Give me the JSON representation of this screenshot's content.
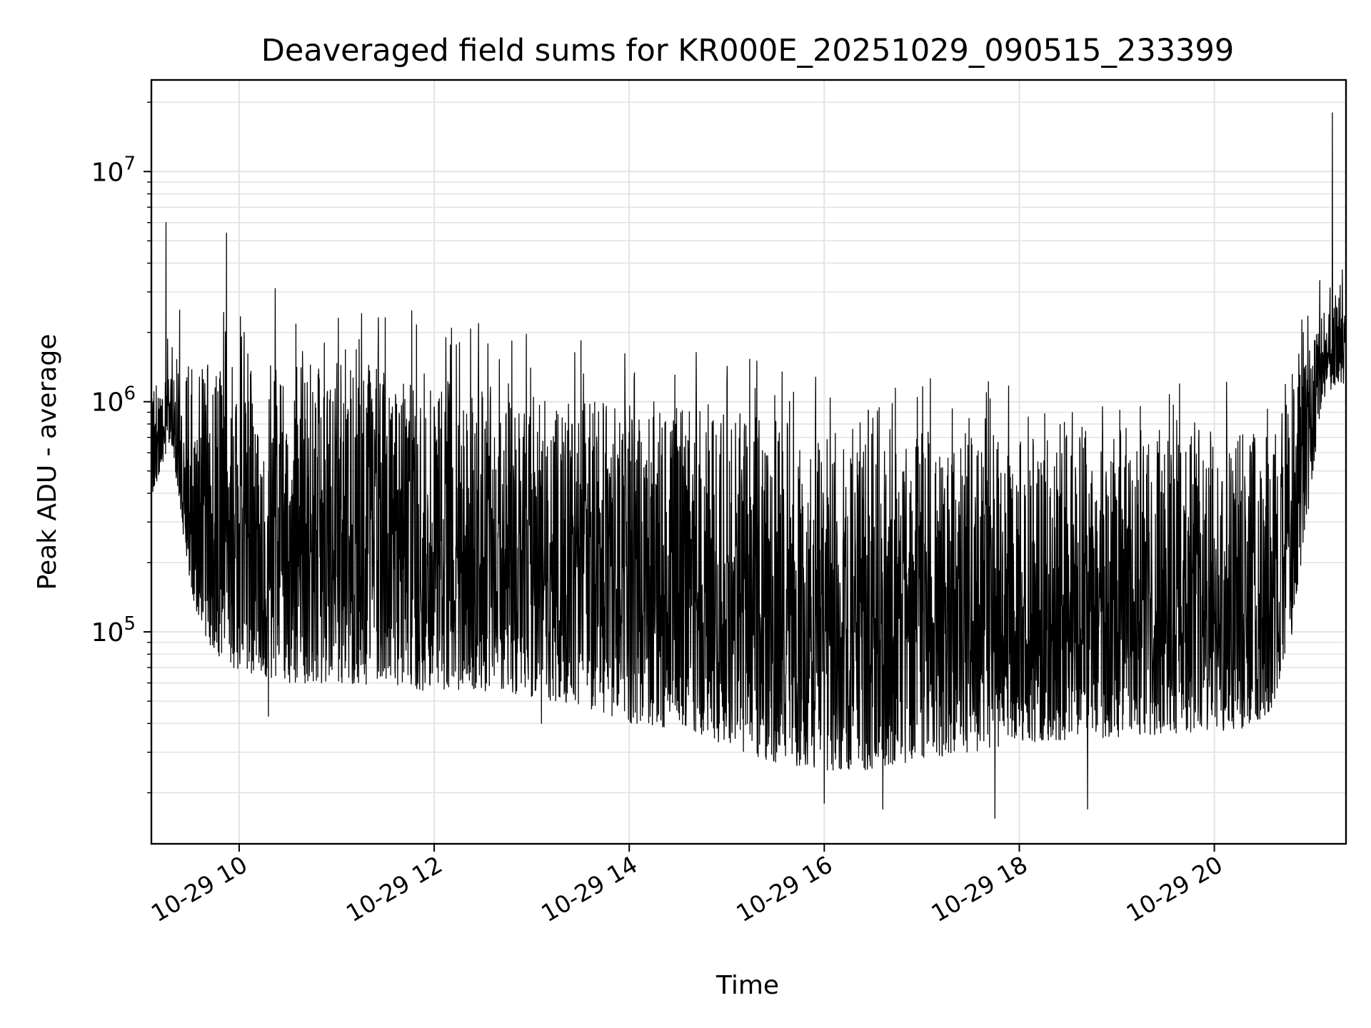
{
  "chart_data": {
    "type": "line",
    "title": "Deaveraged field sums for KR000E_20251029_090515_233399",
    "xlabel": "Time",
    "ylabel": "Peak ADU - average",
    "yscale": "log",
    "xlim_hours": [
      9.1,
      21.35
    ],
    "ylim": [
      12000,
      25000000
    ],
    "x_ticks": [
      {
        "label": "10-29 10",
        "hour": 10
      },
      {
        "label": "10-29 12",
        "hour": 12
      },
      {
        "label": "10-29 14",
        "hour": 14
      },
      {
        "label": "10-29 16",
        "hour": 16
      },
      {
        "label": "10-29 18",
        "hour": 18
      },
      {
        "label": "10-29 20",
        "hour": 20
      }
    ],
    "y_ticks": [
      {
        "base": "10",
        "exp": "5",
        "value": 100000
      },
      {
        "base": "10",
        "exp": "6",
        "value": 1000000
      },
      {
        "base": "10",
        "exp": "7",
        "value": 10000000
      }
    ],
    "grid": true,
    "line_color": "#000000",
    "series": [
      {
        "name": "Peak ADU - average",
        "envelope_hours": [
          9.1,
          9.3,
          9.5,
          9.7,
          9.9,
          10.2,
          10.5,
          11.0,
          11.5,
          12.0,
          12.5,
          13.0,
          13.5,
          14.0,
          14.5,
          15.0,
          15.5,
          16.0,
          16.5,
          17.0,
          17.5,
          18.0,
          18.5,
          19.0,
          19.5,
          20.0,
          20.3,
          20.6,
          20.8,
          20.95,
          21.1,
          21.25,
          21.35
        ],
        "envelope_low": [
          380000,
          700000,
          150000,
          80000,
          70000,
          65000,
          60000,
          60000,
          58000,
          55000,
          55000,
          52000,
          48000,
          40000,
          38000,
          32000,
          27000,
          25000,
          25000,
          28000,
          30000,
          33000,
          34000,
          35000,
          36000,
          37000,
          38000,
          45000,
          100000,
          300000,
          1000000,
          1200000,
          1100000
        ],
        "envelope_high": [
          1200000,
          1300000,
          1500000,
          1500000,
          1500000,
          1450000,
          1450000,
          1450000,
          1450000,
          1400000,
          1250000,
          1100000,
          1050000,
          1000000,
          950000,
          900000,
          850000,
          750000,
          700000,
          750000,
          750000,
          700000,
          720000,
          700000,
          700000,
          700000,
          720000,
          800000,
          1100000,
          1700000,
          2400000,
          2600000,
          2200000
        ],
        "spikes": [
          {
            "hour": 9.25,
            "value": 6000000
          },
          {
            "hour": 9.39,
            "value": 2500000
          },
          {
            "hour": 9.87,
            "value": 5400000
          },
          {
            "hour": 10.37,
            "value": 3100000
          },
          {
            "hour": 12.12,
            "value": 1900000
          },
          {
            "hour": 21.21,
            "value": 18000000
          },
          {
            "hour": 21.29,
            "value": 3200000
          }
        ],
        "dips": [
          {
            "hour": 10.3,
            "value": 43000
          },
          {
            "hour": 13.1,
            "value": 40000
          },
          {
            "hour": 16.0,
            "value": 18000
          },
          {
            "hour": 16.6,
            "value": 17000
          },
          {
            "hour": 17.75,
            "value": 15500
          },
          {
            "hour": 18.7,
            "value": 17000
          }
        ]
      }
    ]
  }
}
